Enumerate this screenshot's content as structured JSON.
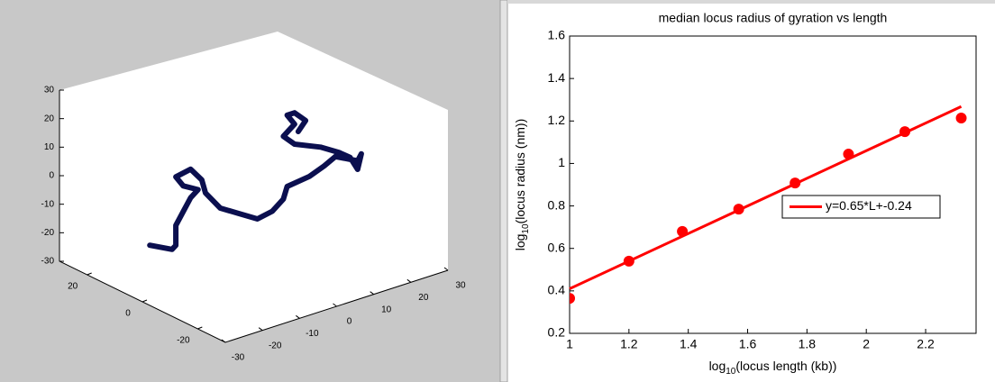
{
  "chart_data": [
    {
      "type": "line3d",
      "color": "#0b0f4f",
      "x": [
        -28,
        -22,
        -21,
        -21,
        -19,
        -17,
        -15,
        -19,
        -21,
        -17,
        -14,
        -13,
        -9,
        -4,
        1,
        5,
        8,
        9,
        15,
        19,
        22,
        28,
        29,
        28,
        26,
        23,
        18,
        11,
        8,
        11,
        9,
        11,
        14,
        12
      ],
      "y": [
        0,
        0,
        0,
        0,
        0,
        0,
        0,
        0,
        0,
        0,
        0,
        0,
        0,
        0,
        0,
        0,
        0,
        0,
        0,
        0,
        0,
        0,
        0,
        0,
        0,
        0,
        0,
        0,
        0,
        0,
        0,
        0,
        0,
        0
      ],
      "z": [
        -11,
        -15,
        -14,
        -7,
        -3,
        1,
        3,
        6,
        10,
        11,
        6,
        1,
        -6,
        -10,
        -14,
        -13,
        -10,
        -6,
        -5,
        -3,
        -1,
        -5,
        -3,
        -8,
        -3,
        0,
        4,
        8,
        12,
        15,
        19,
        19,
        15,
        12
      ],
      "xlim": [
        -30,
        30
      ],
      "ylim": [
        -30,
        30
      ],
      "zlim": [
        -30,
        30
      ],
      "xticks": [
        -30,
        -20,
        -10,
        0,
        10,
        20,
        30
      ],
      "yticks": [
        -20,
        0,
        20
      ],
      "zticks": [
        -30,
        -20,
        -10,
        0,
        10,
        20,
        30
      ]
    },
    {
      "type": "scatter",
      "title": "median locus radius of gyration vs length",
      "xlabel": {
        "prefix": "log",
        "sub": "10",
        "rest": "(locus length (kb))"
      },
      "ylabel": {
        "prefix": "log",
        "sub": "10",
        "rest": "(locus radius (nm))"
      },
      "xlim": [
        1,
        2.37
      ],
      "ylim": [
        0.2,
        1.6
      ],
      "xticks": [
        1,
        1.2,
        1.4,
        1.6,
        1.8,
        2,
        2.2
      ],
      "yticks": [
        0.2,
        0.4,
        0.6,
        0.8,
        1,
        1.2,
        1.4,
        1.6
      ],
      "legend": "east",
      "series": [
        {
          "color": "#ff0000",
          "marker": "circle",
          "x": [
            1,
            1.2,
            1.38,
            1.57,
            1.76,
            1.94,
            2.13,
            2.32
          ],
          "values": [
            0.365,
            0.54,
            0.68,
            0.785,
            0.908,
            1.044,
            1.15,
            1.214
          ]
        },
        {
          "name": "y=0.65*L+-0.24",
          "color": "#ff0000",
          "marker": "line",
          "x": [
            1,
            2.32
          ],
          "values": [
            0.41,
            1.268
          ]
        }
      ]
    }
  ]
}
